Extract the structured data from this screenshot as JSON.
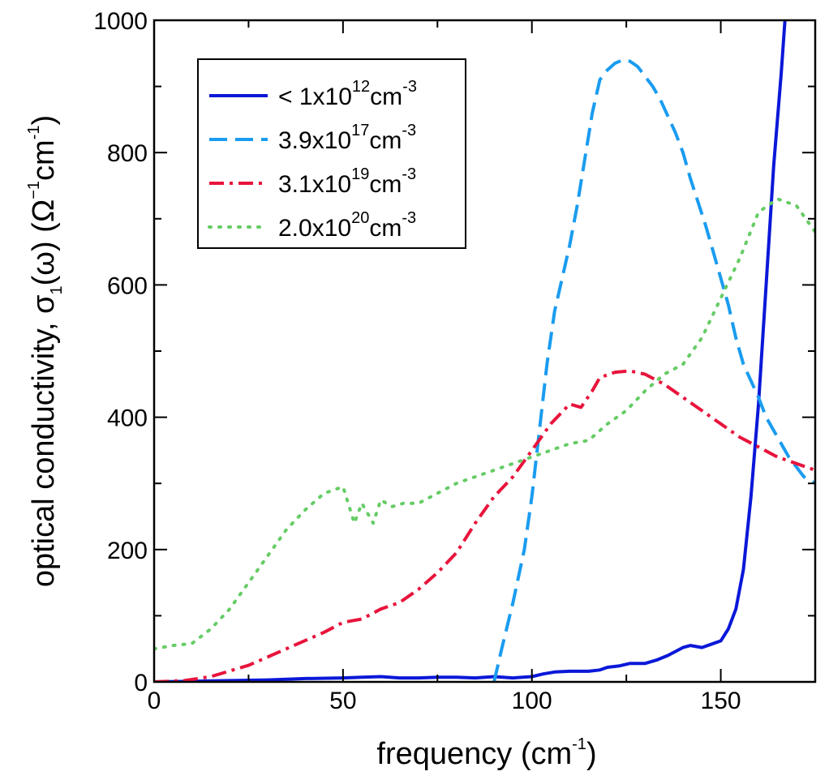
{
  "chart_data": {
    "type": "line",
    "title": "",
    "xlabel": {
      "main": "frequency (cm",
      "sup": "-1",
      "tail": ")"
    },
    "ylabel": {
      "main": "optical conductivity, σ",
      "sub": "1",
      "mid": "(ω) (Ω",
      "sup1": "−1",
      "cm": "cm",
      "sup2": "-1",
      "tail": ")"
    },
    "xlim": [
      0,
      175
    ],
    "ylim": [
      0,
      1000
    ],
    "xticks": [
      0,
      50,
      100,
      150
    ],
    "yticks": [
      0,
      200,
      400,
      600,
      800,
      1000
    ],
    "xticks_minor": [
      25,
      75,
      125,
      175
    ],
    "yticks_minor": [
      100,
      300,
      500,
      700,
      900
    ],
    "grid": false,
    "legend": "top-left",
    "series": [
      {
        "name": "< 1x10",
        "exp": "12",
        "unit": "cm",
        "unit_exp": "-3",
        "color": "#0a18d8",
        "dash": "solid",
        "x": [
          0,
          10,
          20,
          30,
          40,
          50,
          55,
          60,
          65,
          70,
          75,
          80,
          85,
          90,
          95,
          100,
          103,
          106,
          110,
          115,
          118,
          120,
          123,
          126,
          130,
          133,
          136,
          140,
          142,
          145,
          148,
          150,
          152,
          154,
          156,
          158,
          160,
          162,
          164,
          166,
          167
        ],
        "values": [
          0,
          1,
          2,
          3,
          5,
          6,
          7,
          8,
          6,
          6,
          7,
          7,
          6,
          8,
          6,
          8,
          12,
          15,
          16,
          16,
          18,
          22,
          24,
          28,
          28,
          33,
          40,
          52,
          55,
          52,
          58,
          62,
          80,
          110,
          170,
          280,
          420,
          600,
          780,
          920,
          1000
        ]
      },
      {
        "name": "3.9x10",
        "exp": "17",
        "unit": "cm",
        "unit_exp": "-3",
        "color": "#1a9cf0",
        "dash": "dashed",
        "x": [
          90,
          92,
          95,
          98,
          100,
          102,
          104,
          106,
          108,
          110,
          112,
          114,
          116,
          118,
          120,
          122,
          124,
          126,
          128,
          130,
          132,
          134,
          136,
          138,
          140,
          142,
          144,
          146,
          148,
          150,
          152,
          154,
          156,
          158,
          160,
          162,
          164,
          166,
          168,
          170,
          172,
          175
        ],
        "values": [
          0,
          50,
          120,
          200,
          280,
          380,
          480,
          560,
          610,
          660,
          720,
          790,
          860,
          910,
          925,
          935,
          940,
          938,
          930,
          915,
          900,
          880,
          855,
          830,
          800,
          760,
          725,
          690,
          650,
          610,
          570,
          520,
          480,
          455,
          430,
          400,
          380,
          360,
          340,
          325,
          310,
          300
        ]
      },
      {
        "name": "3.1x10",
        "exp": "19",
        "unit": "cm",
        "unit_exp": "-3",
        "color": "#e8143c",
        "dash": "dashdot",
        "x": [
          0,
          8,
          15,
          25,
          35,
          45,
          50,
          55,
          60,
          65,
          70,
          75,
          80,
          85,
          90,
          95,
          100,
          105,
          110,
          113,
          116,
          118,
          122,
          126,
          130,
          135,
          140,
          145,
          150,
          155,
          160,
          165,
          170,
          175
        ],
        "values": [
          0,
          2,
          8,
          25,
          50,
          75,
          90,
          95,
          110,
          120,
          140,
          165,
          195,
          240,
          280,
          310,
          350,
          390,
          420,
          415,
          440,
          460,
          468,
          470,
          465,
          450,
          430,
          410,
          390,
          370,
          355,
          340,
          330,
          320
        ]
      },
      {
        "name": "2.0x10",
        "exp": "20",
        "unit": "cm",
        "unit_exp": "-3",
        "color": "#66cc66",
        "dash": "dotted",
        "x": [
          0,
          5,
          10,
          15,
          20,
          25,
          30,
          35,
          40,
          45,
          50,
          53,
          55,
          58,
          60,
          63,
          66,
          70,
          75,
          80,
          85,
          90,
          95,
          100,
          105,
          110,
          115,
          120,
          125,
          130,
          135,
          140,
          145,
          150,
          155,
          160,
          165,
          170,
          175
        ],
        "values": [
          50,
          55,
          58,
          80,
          110,
          150,
          190,
          230,
          260,
          285,
          295,
          240,
          270,
          240,
          275,
          265,
          270,
          270,
          285,
          300,
          310,
          320,
          330,
          340,
          350,
          360,
          365,
          390,
          410,
          440,
          465,
          480,
          520,
          580,
          640,
          710,
          730,
          720,
          680
        ]
      }
    ]
  }
}
